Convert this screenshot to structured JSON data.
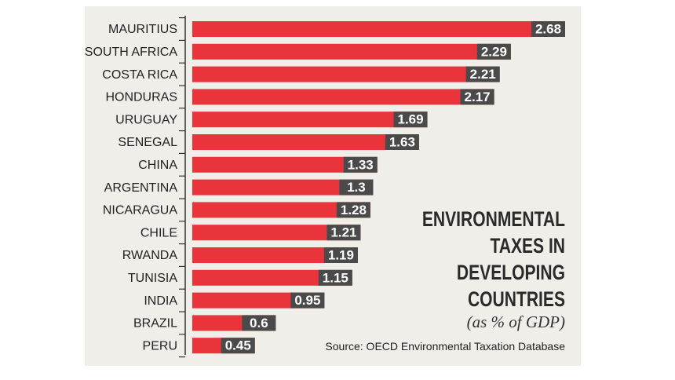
{
  "chart_data": {
    "type": "bar",
    "title": "ENVIRONMENTAL TAXES IN DEVELOPING COUNTRIES",
    "subtitle": "(as % of GDP)",
    "source": "Source: OECD Environmental Taxation Database",
    "categories": [
      "MAURITIUS",
      "SOUTH AFRICA",
      "COSTA RICA",
      "HONDURAS",
      "URUGUAY",
      "SENEGAL",
      "CHINA",
      "ARGENTINA",
      "NICARAGUA",
      "CHILE",
      "RWANDA",
      "TUNISIA",
      "INDIA",
      "BRAZIL",
      "PERU"
    ],
    "values": [
      2.68,
      2.29,
      2.21,
      2.17,
      1.69,
      1.63,
      1.33,
      1.3,
      1.28,
      1.21,
      1.19,
      1.15,
      0.95,
      0.6,
      0.45
    ],
    "color": "#e8343a"
  }
}
